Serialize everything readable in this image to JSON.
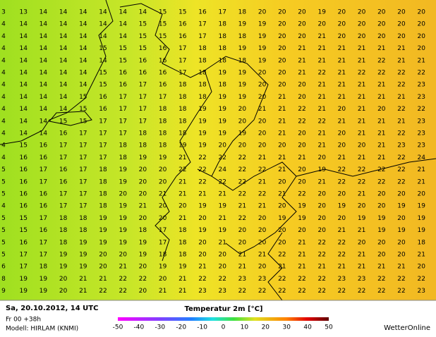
{
  "grid": {
    "rows": [
      [
        3,
        13,
        14,
        14,
        14,
        14,
        14,
        14,
        15,
        15,
        16,
        17,
        18,
        20,
        20,
        20,
        19,
        20,
        20,
        20,
        20,
        20
      ],
      [
        4,
        14,
        14,
        14,
        14,
        14,
        14,
        15,
        15,
        16,
        17,
        18,
        19,
        19,
        20,
        20,
        20,
        20,
        20,
        20,
        20,
        20
      ],
      [
        4,
        14,
        14,
        14,
        14,
        14,
        14,
        15,
        15,
        16,
        17,
        18,
        18,
        19,
        20,
        20,
        21,
        20,
        20,
        20,
        20,
        20
      ],
      [
        4,
        14,
        14,
        14,
        14,
        15,
        15,
        15,
        16,
        17,
        18,
        18,
        19,
        19,
        20,
        21,
        21,
        21,
        21,
        21,
        21,
        20
      ],
      [
        4,
        14,
        14,
        14,
        14,
        14,
        15,
        16,
        16,
        17,
        18,
        18,
        18,
        19,
        20,
        21,
        21,
        21,
        21,
        22,
        21,
        21
      ],
      [
        4,
        14,
        14,
        14,
        14,
        15,
        16,
        16,
        16,
        17,
        18,
        19,
        19,
        20,
        20,
        21,
        22,
        21,
        22,
        22,
        22,
        22
      ],
      [
        4,
        14,
        14,
        14,
        14,
        15,
        16,
        17,
        16,
        18,
        18,
        18,
        19,
        20,
        20,
        20,
        21,
        21,
        21,
        21,
        22,
        23
      ],
      [
        4,
        14,
        14,
        14,
        15,
        16,
        17,
        17,
        17,
        18,
        18,
        19,
        19,
        20,
        21,
        20,
        21,
        21,
        21,
        21,
        21,
        23
      ],
      [
        4,
        14,
        14,
        14,
        15,
        16,
        17,
        17,
        18,
        18,
        19,
        19,
        20,
        21,
        21,
        22,
        21,
        20,
        21,
        20,
        22,
        22
      ],
      [
        4,
        14,
        14,
        15,
        15,
        17,
        17,
        17,
        18,
        18,
        19,
        19,
        20,
        20,
        21,
        22,
        22,
        21,
        21,
        21,
        21,
        23
      ],
      [
        4,
        14,
        14,
        16,
        17,
        17,
        17,
        18,
        18,
        18,
        19,
        19,
        19,
        20,
        21,
        20,
        21,
        20,
        21,
        21,
        22,
        23
      ],
      [
        4,
        15,
        16,
        17,
        17,
        17,
        18,
        18,
        18,
        19,
        19,
        20,
        20,
        20,
        20,
        20,
        21,
        20,
        20,
        21,
        23,
        23
      ],
      [
        4,
        16,
        16,
        17,
        17,
        17,
        18,
        19,
        19,
        21,
        22,
        22,
        22,
        21,
        21,
        21,
        20,
        21,
        21,
        21,
        22,
        24
      ],
      [
        5,
        16,
        17,
        16,
        17,
        18,
        19,
        20,
        20,
        22,
        22,
        24,
        22,
        22,
        21,
        20,
        19,
        22,
        22,
        22,
        22,
        21
      ],
      [
        5,
        16,
        17,
        16,
        17,
        18,
        19,
        20,
        20,
        21,
        22,
        22,
        22,
        21,
        20,
        20,
        21,
        22,
        22,
        22,
        22,
        21
      ],
      [
        5,
        16,
        16,
        17,
        17,
        18,
        20,
        20,
        21,
        21,
        21,
        21,
        22,
        22,
        21,
        22,
        20,
        20,
        21,
        20,
        20,
        20
      ],
      [
        4,
        16,
        16,
        17,
        17,
        18,
        19,
        21,
        20,
        20,
        19,
        19,
        21,
        21,
        20,
        19,
        20,
        19,
        20,
        20,
        19,
        19
      ],
      [
        5,
        15,
        17,
        18,
        18,
        19,
        19,
        20,
        20,
        21,
        20,
        21,
        22,
        20,
        19,
        19,
        20,
        20,
        19,
        19,
        20,
        19
      ],
      [
        5,
        15,
        16,
        18,
        18,
        19,
        19,
        18,
        17,
        18,
        19,
        19,
        20,
        20,
        20,
        20,
        20,
        21,
        21,
        19,
        19,
        19
      ],
      [
        5,
        16,
        17,
        18,
        19,
        19,
        19,
        19,
        17,
        18,
        20,
        21,
        20,
        20,
        20,
        21,
        22,
        22,
        20,
        20,
        20,
        18
      ],
      [
        5,
        17,
        17,
        19,
        19,
        20,
        20,
        19,
        18,
        18,
        20,
        20,
        21,
        21,
        22,
        21,
        22,
        22,
        21,
        20,
        20,
        21
      ],
      [
        6,
        17,
        18,
        19,
        19,
        20,
        21,
        20,
        19,
        19,
        21,
        20,
        21,
        20,
        21,
        21,
        21,
        21,
        21,
        21,
        21,
        20
      ],
      [
        8,
        19,
        19,
        20,
        21,
        21,
        22,
        22,
        20,
        21,
        22,
        22,
        23,
        23,
        22,
        22,
        22,
        23,
        23,
        22,
        22,
        22
      ],
      [
        9,
        19,
        19,
        20,
        21,
        22,
        22,
        20,
        21,
        21,
        23,
        23,
        22,
        22,
        22,
        22,
        22,
        22,
        22,
        22,
        22,
        23
      ]
    ]
  },
  "footer": {
    "date": "Sa, 20.10.2012, 14 UTC",
    "run": "Fr 00 +38h",
    "model": "Modell: HIRLAM (KNMI)",
    "title": "Temperatur 2m [°C]",
    "scale_ticks": [
      -50,
      -40,
      -30,
      -20,
      -10,
      0,
      10,
      20,
      30,
      40,
      50
    ],
    "brand": "WetterOnline"
  }
}
